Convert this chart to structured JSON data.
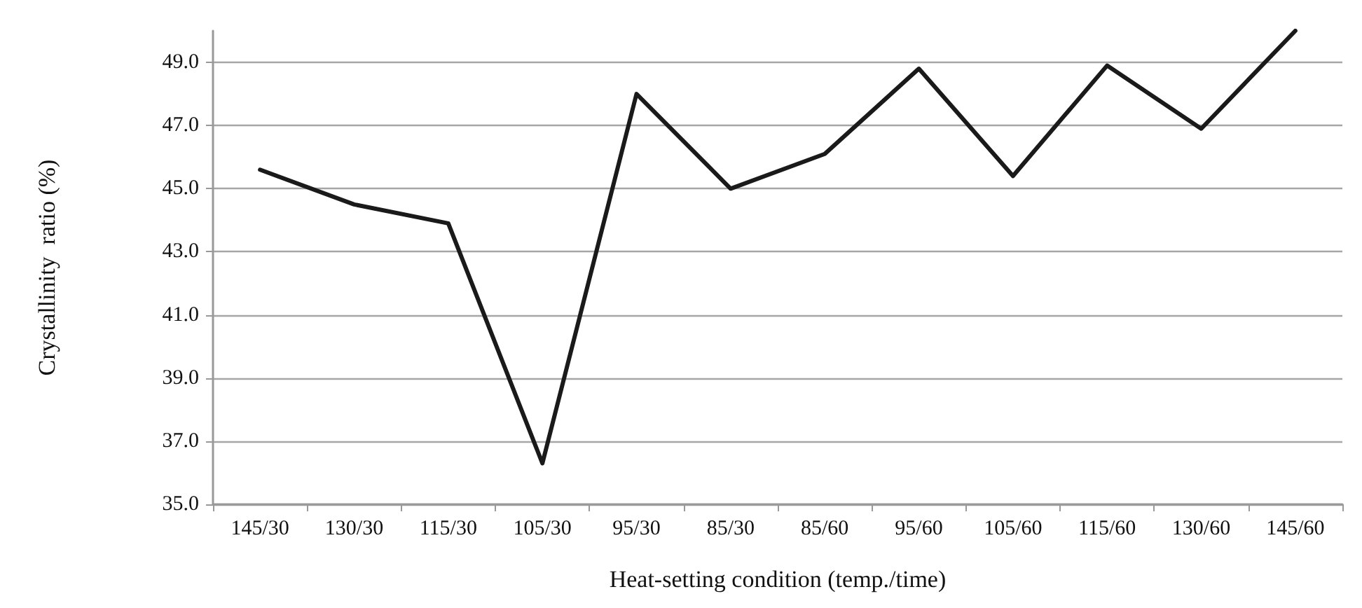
{
  "chart_data": {
    "type": "line",
    "xlabel": "Heat-setting condition (temp./time)",
    "ylabel": "Crystallinity  ratio (%)",
    "categories": [
      "145/30",
      "130/30",
      "115/30",
      "105/30",
      "95/30",
      "85/30",
      "85/60",
      "95/60",
      "105/60",
      "115/60",
      "130/60",
      "145/60"
    ],
    "series": [
      {
        "color": "#1a1a1a",
        "values": [
          45.6,
          44.5,
          43.9,
          36.3,
          48.0,
          45.0,
          46.1,
          48.8,
          45.4,
          48.9,
          46.9,
          50.0
        ]
      }
    ],
    "ylim": [
      35,
      50
    ],
    "yticks": [
      {
        "value": 35,
        "label": "35.0"
      },
      {
        "value": 37,
        "label": "37.0"
      },
      {
        "value": 39,
        "label": "39.0"
      },
      {
        "value": 41,
        "label": "41.0"
      },
      {
        "value": 43,
        "label": "43.0"
      },
      {
        "value": 45,
        "label": "45.0"
      },
      {
        "value": 47,
        "label": "47.0"
      },
      {
        "value": 49,
        "label": "49.0"
      }
    ],
    "grid": "y",
    "marker": "none",
    "line_style": "solid"
  }
}
